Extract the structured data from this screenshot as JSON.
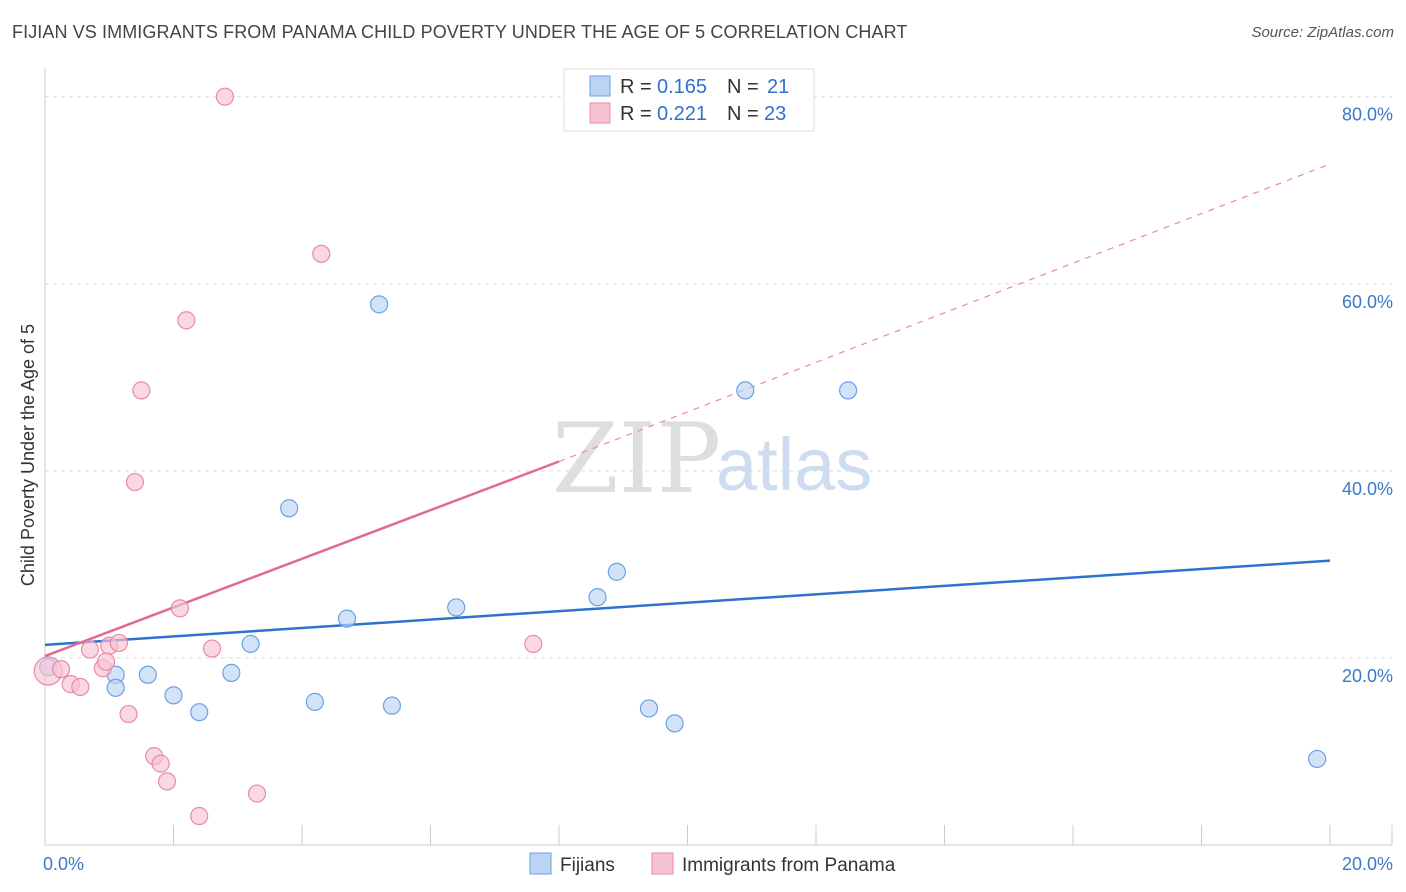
{
  "header": {
    "title": "FIJIAN VS IMMIGRANTS FROM PANAMA CHILD POVERTY UNDER THE AGE OF 5 CORRELATION CHART",
    "source": "Source: ZipAtlas.com"
  },
  "watermark": {
    "zip": "ZIP",
    "atlas": "atlas"
  },
  "legend": {
    "rows": [
      {
        "r_label": "R = ",
        "r_value": "0.165",
        "n_label": "N = ",
        "n_value": "21"
      },
      {
        "r_label": "R = ",
        "r_value": "0.221",
        "n_label": "N = ",
        "n_value": "23"
      }
    ]
  },
  "bottom_legend": [
    "Fijians",
    "Immigrants from Panama"
  ],
  "chart_data": {
    "type": "scatter",
    "title": "FIJIAN VS IMMIGRANTS FROM PANAMA CHILD POVERTY UNDER THE AGE OF 5 CORRELATION CHART",
    "xlabel": "",
    "ylabel": "Child Poverty Under the Age of 5",
    "xlim": [
      0,
      20
    ],
    "ylim": [
      0,
      82
    ],
    "x_tick_labels": [
      "0.0%",
      "20.0%"
    ],
    "y_ticks": [
      20,
      40,
      60,
      80
    ],
    "y_tick_labels": [
      "20.0%",
      "40.0%",
      "60.0%",
      "80.0%"
    ],
    "grid": true,
    "legend_position": "top-center",
    "series": [
      {
        "name": "Fijians",
        "color": "#6aa1e6",
        "fill": "#bcd4f3",
        "points": [
          [
            0.05,
            19.0
          ],
          [
            1.1,
            18.2
          ],
          [
            1.1,
            16.8
          ],
          [
            1.6,
            18.2
          ],
          [
            2.0,
            16.0
          ],
          [
            2.4,
            14.2
          ],
          [
            2.9,
            18.4
          ],
          [
            3.2,
            21.5
          ],
          [
            3.8,
            36.0
          ],
          [
            4.2,
            15.3
          ],
          [
            4.7,
            24.2
          ],
          [
            5.2,
            57.8
          ],
          [
            5.4,
            14.9
          ],
          [
            6.4,
            25.4
          ],
          [
            8.6,
            26.5
          ],
          [
            8.9,
            29.2
          ],
          [
            9.4,
            14.6
          ],
          [
            9.8,
            13.0
          ],
          [
            10.9,
            48.6
          ],
          [
            12.5,
            48.6
          ],
          [
            19.8,
            9.2
          ]
        ],
        "trend": {
          "x0": 0.0,
          "y0": 21.4,
          "x1": 20.0,
          "y1": 30.4
        }
      },
      {
        "name": "Immigrants from Panama",
        "color": "#e88aa8",
        "fill": "#f7c3d3",
        "points": [
          [
            0.05,
            18.6
          ],
          [
            0.25,
            18.8
          ],
          [
            0.4,
            17.2
          ],
          [
            0.55,
            16.9
          ],
          [
            0.7,
            20.9
          ],
          [
            0.9,
            18.9
          ],
          [
            1.0,
            21.3
          ],
          [
            1.15,
            21.6
          ],
          [
            1.3,
            14.0
          ],
          [
            1.4,
            38.8
          ],
          [
            1.5,
            48.6
          ],
          [
            1.7,
            9.5
          ],
          [
            1.8,
            8.7
          ],
          [
            1.9,
            6.8
          ],
          [
            2.1,
            25.3
          ],
          [
            2.2,
            56.1
          ],
          [
            2.4,
            3.1
          ],
          [
            2.6,
            21.0
          ],
          [
            2.8,
            80.0
          ],
          [
            3.3,
            5.5
          ],
          [
            4.3,
            63.2
          ],
          [
            7.6,
            21.5
          ],
          [
            0.95,
            19.6
          ]
        ],
        "trend": {
          "x0": 0.0,
          "y0": 20.2,
          "x1": 8.0,
          "y1": 41.0,
          "x_ext": 20.0,
          "y_ext": 72.8
        }
      }
    ]
  }
}
